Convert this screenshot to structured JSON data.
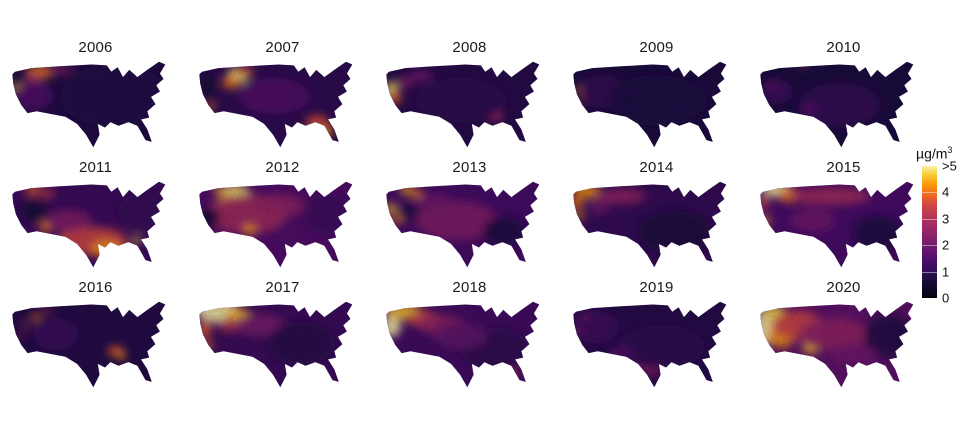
{
  "figure": {
    "description": "Small-multiples heatmap of annual wildfire-smoke PM concentration over the contiguous United States, 2006-2020"
  },
  "chart_data": {
    "type": "heatmap",
    "subtype": "small-multiples-us-maps",
    "layout": {
      "rows": 3,
      "cols": 5,
      "grid_on": false,
      "legend_position": "right"
    },
    "legend": {
      "unit_base": "µg/m",
      "unit_exp": "3",
      "ticks": [
        ">5",
        "4",
        "3",
        "2",
        "1",
        "0"
      ],
      "range": [
        0,
        5
      ],
      "top_open_ended": true
    },
    "colormap": {
      "name": "inferno",
      "stops": [
        [
          0.0,
          "#05020f"
        ],
        [
          0.14,
          "#1b0c41"
        ],
        [
          0.28,
          "#4a0c6b"
        ],
        [
          0.42,
          "#781c6d"
        ],
        [
          0.56,
          "#a52c60"
        ],
        [
          0.7,
          "#cf4446"
        ],
        [
          0.78,
          "#ed6925"
        ],
        [
          0.86,
          "#fb9b06"
        ],
        [
          0.94,
          "#f7d03c"
        ],
        [
          1.0,
          "#fcf3a8"
        ]
      ]
    },
    "maps": [
      {
        "year": "2006",
        "base": 0.16,
        "hotspots": [
          [
            38,
            13,
            16,
            7,
            0.8
          ],
          [
            30,
            22,
            10,
            7,
            0.55
          ],
          [
            13,
            31,
            6,
            6,
            0.9
          ],
          [
            17,
            42,
            5,
            4,
            0.6
          ],
          [
            60,
            11,
            14,
            5,
            0.45
          ],
          [
            30,
            40,
            22,
            16,
            0.3
          ],
          [
            120,
            40,
            60,
            35,
            0.17
          ]
        ]
      },
      {
        "year": "2007",
        "base": 0.2,
        "hotspots": [
          [
            50,
            17,
            12,
            9,
            0.97
          ],
          [
            42,
            25,
            9,
            7,
            0.8
          ],
          [
            58,
            12,
            10,
            5,
            0.7
          ],
          [
            138,
            70,
            13,
            9,
            0.72
          ],
          [
            149,
            79,
            7,
            6,
            0.85
          ],
          [
            20,
            52,
            5,
            4,
            0.8
          ],
          [
            16,
            30,
            10,
            14,
            0.12
          ],
          [
            90,
            40,
            40,
            20,
            0.3
          ]
        ]
      },
      {
        "year": "2008",
        "base": 0.18,
        "hotspots": [
          [
            12,
            33,
            7,
            9,
            0.97
          ],
          [
            17,
            42,
            7,
            7,
            0.75
          ],
          [
            27,
            25,
            9,
            7,
            0.45
          ],
          [
            128,
            62,
            9,
            6,
            0.55
          ],
          [
            45,
            18,
            14,
            7,
            0.38
          ],
          [
            90,
            45,
            50,
            25,
            0.2
          ]
        ]
      },
      {
        "year": "2009",
        "base": 0.15,
        "hotspots": [
          [
            12,
            33,
            3,
            4,
            0.8
          ],
          [
            15,
            45,
            3,
            3,
            0.65
          ],
          [
            25,
            23,
            4,
            3,
            0.45
          ],
          [
            40,
            35,
            25,
            18,
            0.22
          ],
          [
            100,
            45,
            55,
            28,
            0.15
          ]
        ]
      },
      {
        "year": "2010",
        "base": 0.14,
        "hotspots": [
          [
            55,
            6,
            6,
            2,
            0.7
          ],
          [
            25,
            35,
            18,
            14,
            0.25
          ],
          [
            95,
            50,
            45,
            25,
            0.22
          ],
          [
            20,
            28,
            3,
            3,
            0.5
          ],
          [
            60,
            55,
            10,
            8,
            0.3
          ]
        ]
      },
      {
        "year": "2011",
        "base": 0.24,
        "hotspots": [
          [
            95,
            68,
            40,
            16,
            0.7
          ],
          [
            112,
            76,
            18,
            9,
            0.85
          ],
          [
            145,
            67,
            5,
            4,
            0.95
          ],
          [
            30,
            11,
            9,
            6,
            0.75
          ],
          [
            46,
            15,
            8,
            5,
            0.65
          ],
          [
            44,
            52,
            7,
            6,
            0.82
          ],
          [
            30,
            34,
            16,
            12,
            0.12
          ],
          [
            150,
            35,
            25,
            20,
            0.22
          ],
          [
            70,
            45,
            25,
            12,
            0.45
          ]
        ]
      },
      {
        "year": "2012",
        "base": 0.3,
        "hotspots": [
          [
            47,
            15,
            16,
            10,
            0.97
          ],
          [
            35,
            23,
            9,
            7,
            0.85
          ],
          [
            60,
            38,
            45,
            22,
            0.55
          ],
          [
            63,
            55,
            7,
            6,
            0.85
          ],
          [
            18,
            42,
            12,
            11,
            0.12
          ],
          [
            150,
            38,
            28,
            24,
            0.25
          ],
          [
            95,
            28,
            28,
            12,
            0.5
          ],
          [
            28,
            10,
            6,
            4,
            0.9
          ]
        ]
      },
      {
        "year": "2013",
        "base": 0.27,
        "hotspots": [
          [
            29,
            11,
            7,
            5,
            0.9
          ],
          [
            40,
            15,
            7,
            5,
            0.82
          ],
          [
            12,
            32,
            6,
            6,
            0.92
          ],
          [
            19,
            44,
            5,
            5,
            0.85
          ],
          [
            85,
            45,
            45,
            22,
            0.45
          ],
          [
            138,
            57,
            24,
            16,
            0.15
          ],
          [
            32,
            36,
            11,
            9,
            0.15
          ],
          [
            60,
            25,
            20,
            10,
            0.4
          ]
        ]
      },
      {
        "year": "2014",
        "base": 0.22,
        "hotspots": [
          [
            22,
            12,
            14,
            8,
            0.85
          ],
          [
            11,
            25,
            7,
            8,
            0.8
          ],
          [
            13,
            40,
            5,
            5,
            0.85
          ],
          [
            60,
            18,
            28,
            9,
            0.5
          ],
          [
            120,
            58,
            40,
            24,
            0.14
          ],
          [
            35,
            30,
            12,
            8,
            0.4
          ]
        ]
      },
      {
        "year": "2015",
        "base": 0.28,
        "hotspots": [
          [
            25,
            11,
            16,
            8,
            1.0
          ],
          [
            40,
            17,
            13,
            8,
            0.8
          ],
          [
            13,
            45,
            5,
            5,
            0.9
          ],
          [
            85,
            18,
            45,
            10,
            0.55
          ],
          [
            138,
            60,
            28,
            20,
            0.15
          ],
          [
            65,
            45,
            25,
            13,
            0.4
          ],
          [
            10,
            25,
            6,
            8,
            0.7
          ]
        ]
      },
      {
        "year": "2016",
        "base": 0.17,
        "hotspots": [
          [
            33,
            19,
            5,
            4,
            0.8
          ],
          [
            22,
            27,
            4,
            4,
            0.6
          ],
          [
            122,
            57,
            9,
            6,
            0.75
          ],
          [
            128,
            62,
            5,
            4,
            0.85
          ],
          [
            55,
            38,
            25,
            18,
            0.24
          ],
          [
            15,
            40,
            4,
            3,
            0.6
          ],
          [
            45,
            12,
            5,
            3,
            0.6
          ]
        ]
      },
      {
        "year": "2017",
        "base": 0.24,
        "hotspots": [
          [
            28,
            13,
            24,
            12,
            1.0
          ],
          [
            50,
            17,
            14,
            8,
            0.9
          ],
          [
            13,
            33,
            7,
            10,
            0.75
          ],
          [
            17,
            50,
            5,
            5,
            0.8
          ],
          [
            75,
            28,
            28,
            13,
            0.42
          ],
          [
            120,
            48,
            38,
            24,
            0.18
          ],
          [
            40,
            28,
            12,
            8,
            0.6
          ]
        ]
      },
      {
        "year": "2018",
        "base": 0.26,
        "hotspots": [
          [
            13,
            29,
            10,
            12,
            1.0
          ],
          [
            26,
            13,
            20,
            9,
            0.92
          ],
          [
            48,
            21,
            18,
            9,
            0.7
          ],
          [
            68,
            28,
            26,
            11,
            0.5
          ],
          [
            128,
            55,
            38,
            24,
            0.2
          ],
          [
            150,
            81,
            4,
            4,
            0.7
          ],
          [
            90,
            40,
            30,
            15,
            0.35
          ]
        ]
      },
      {
        "year": "2019",
        "base": 0.18,
        "hotspots": [
          [
            30,
            30,
            28,
            18,
            0.25
          ],
          [
            88,
            78,
            18,
            7,
            0.45
          ],
          [
            105,
            52,
            48,
            24,
            0.2
          ],
          [
            20,
            19,
            4,
            3,
            0.5
          ],
          [
            12,
            35,
            3,
            3,
            0.55
          ],
          [
            60,
            60,
            15,
            8,
            0.3
          ]
        ]
      },
      {
        "year": "2020",
        "base": 0.34,
        "hotspots": [
          [
            12,
            30,
            9,
            20,
            1.0
          ],
          [
            22,
            15,
            13,
            9,
            0.95
          ],
          [
            30,
            40,
            15,
            13,
            0.85
          ],
          [
            48,
            28,
            28,
            16,
            0.7
          ],
          [
            63,
            53,
            9,
            7,
            0.9
          ],
          [
            88,
            38,
            38,
            18,
            0.5
          ],
          [
            150,
            40,
            28,
            24,
            0.16
          ],
          [
            110,
            60,
            25,
            12,
            0.4
          ]
        ]
      }
    ]
  }
}
